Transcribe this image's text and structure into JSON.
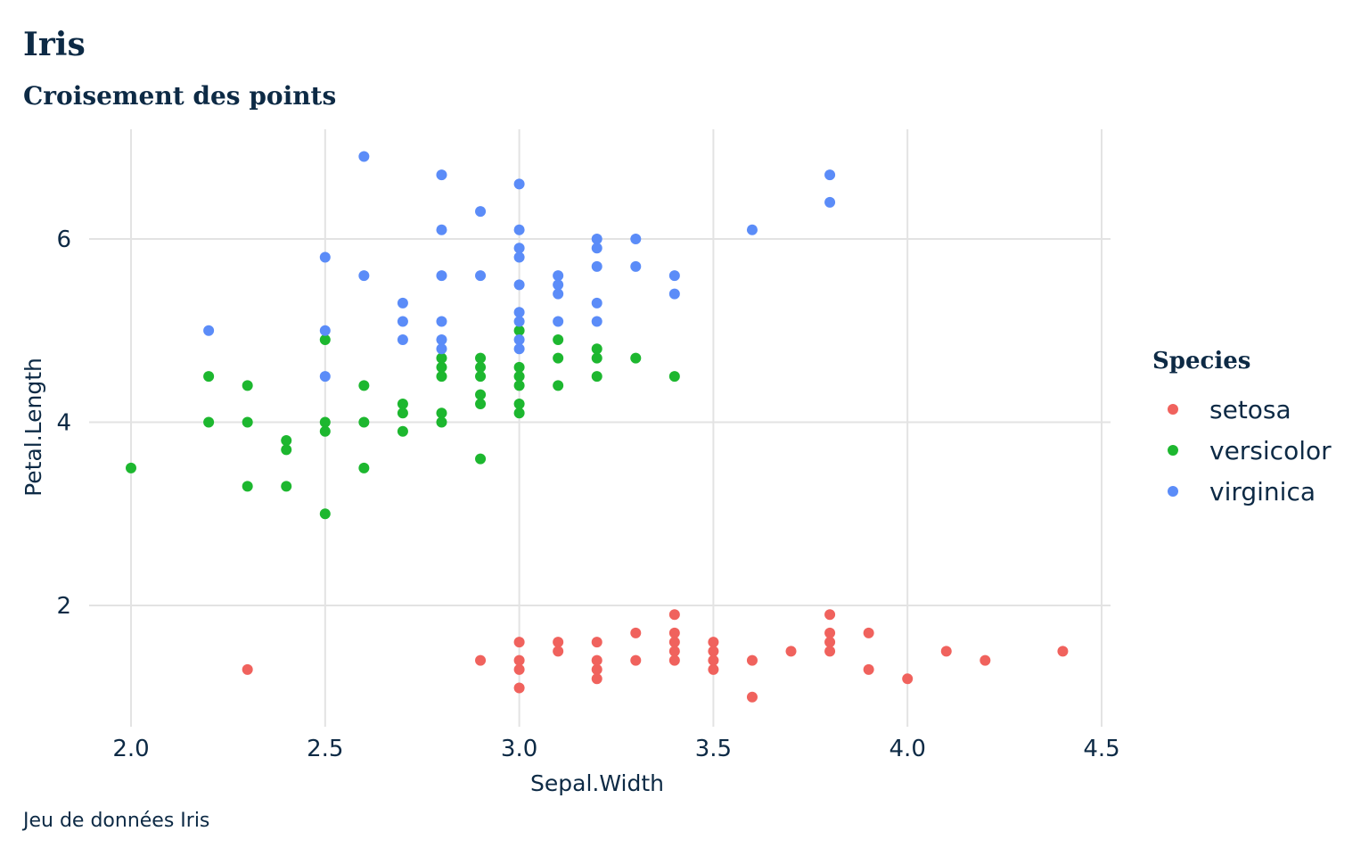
{
  "chart_data": {
    "type": "scatter",
    "title": "Iris",
    "subtitle": "Croisement des points",
    "xlabel": "Sepal.Width",
    "ylabel": "Petal.Length",
    "caption": "Jeu de données Iris",
    "xlim": [
      2.0,
      4.5
    ],
    "ylim": [
      1.0,
      6.9
    ],
    "x_ticks": [
      2.0,
      2.5,
      3.0,
      3.5,
      4.0,
      4.5
    ],
    "x_tick_labels": [
      "2.0",
      "2.5",
      "3.0",
      "3.5",
      "4.0",
      "4.5"
    ],
    "y_ticks": [
      2,
      4,
      6
    ],
    "y_tick_labels": [
      "2",
      "4",
      "6"
    ],
    "grid": true,
    "legend": {
      "title": "Species",
      "position": "right"
    },
    "series": [
      {
        "name": "setosa",
        "color": "#f0625d",
        "points": [
          [
            2.3,
            1.3
          ],
          [
            2.9,
            1.4
          ],
          [
            3.0,
            1.1
          ],
          [
            3.0,
            1.3
          ],
          [
            3.0,
            1.4
          ],
          [
            3.0,
            1.6
          ],
          [
            3.1,
            1.5
          ],
          [
            3.1,
            1.6
          ],
          [
            3.2,
            1.2
          ],
          [
            3.2,
            1.3
          ],
          [
            3.2,
            1.4
          ],
          [
            3.2,
            1.6
          ],
          [
            3.3,
            1.4
          ],
          [
            3.3,
            1.7
          ],
          [
            3.4,
            1.4
          ],
          [
            3.4,
            1.5
          ],
          [
            3.4,
            1.6
          ],
          [
            3.4,
            1.7
          ],
          [
            3.4,
            1.9
          ],
          [
            3.5,
            1.3
          ],
          [
            3.5,
            1.4
          ],
          [
            3.5,
            1.5
          ],
          [
            3.5,
            1.6
          ],
          [
            3.6,
            1.0
          ],
          [
            3.6,
            1.4
          ],
          [
            3.7,
            1.5
          ],
          [
            3.8,
            1.5
          ],
          [
            3.8,
            1.6
          ],
          [
            3.8,
            1.7
          ],
          [
            3.8,
            1.9
          ],
          [
            3.9,
            1.3
          ],
          [
            3.9,
            1.7
          ],
          [
            4.0,
            1.2
          ],
          [
            4.1,
            1.5
          ],
          [
            4.2,
            1.4
          ],
          [
            4.4,
            1.5
          ]
        ]
      },
      {
        "name": "versicolor",
        "color": "#1db72f",
        "points": [
          [
            2.0,
            3.5
          ],
          [
            2.2,
            4.0
          ],
          [
            2.2,
            4.5
          ],
          [
            2.3,
            3.3
          ],
          [
            2.3,
            4.0
          ],
          [
            2.3,
            4.4
          ],
          [
            2.4,
            3.3
          ],
          [
            2.4,
            3.7
          ],
          [
            2.4,
            3.8
          ],
          [
            2.5,
            3.0
          ],
          [
            2.5,
            3.9
          ],
          [
            2.5,
            4.0
          ],
          [
            2.5,
            4.9
          ],
          [
            2.6,
            3.5
          ],
          [
            2.6,
            4.0
          ],
          [
            2.6,
            4.4
          ],
          [
            2.7,
            3.9
          ],
          [
            2.7,
            4.1
          ],
          [
            2.7,
            4.2
          ],
          [
            2.8,
            4.0
          ],
          [
            2.8,
            4.1
          ],
          [
            2.8,
            4.5
          ],
          [
            2.8,
            4.6
          ],
          [
            2.8,
            4.7
          ],
          [
            2.9,
            3.6
          ],
          [
            2.9,
            4.2
          ],
          [
            2.9,
            4.3
          ],
          [
            2.9,
            4.5
          ],
          [
            2.9,
            4.6
          ],
          [
            2.9,
            4.7
          ],
          [
            3.0,
            4.1
          ],
          [
            3.0,
            4.2
          ],
          [
            3.0,
            4.4
          ],
          [
            3.0,
            4.5
          ],
          [
            3.0,
            4.6
          ],
          [
            3.0,
            5.0
          ],
          [
            3.1,
            4.4
          ],
          [
            3.1,
            4.7
          ],
          [
            3.1,
            4.9
          ],
          [
            3.2,
            4.5
          ],
          [
            3.2,
            4.7
          ],
          [
            3.2,
            4.8
          ],
          [
            3.3,
            4.7
          ],
          [
            3.4,
            4.5
          ]
        ]
      },
      {
        "name": "virginica",
        "color": "#5b8cf8",
        "points": [
          [
            2.2,
            5.0
          ],
          [
            2.5,
            4.5
          ],
          [
            2.5,
            5.0
          ],
          [
            2.5,
            5.8
          ],
          [
            2.6,
            5.6
          ],
          [
            2.6,
            6.9
          ],
          [
            2.7,
            4.9
          ],
          [
            2.7,
            5.1
          ],
          [
            2.7,
            5.3
          ],
          [
            2.8,
            4.8
          ],
          [
            2.8,
            4.9
          ],
          [
            2.8,
            5.1
          ],
          [
            2.8,
            5.6
          ],
          [
            2.8,
            6.1
          ],
          [
            2.8,
            6.7
          ],
          [
            2.9,
            5.6
          ],
          [
            2.9,
            6.3
          ],
          [
            3.0,
            4.8
          ],
          [
            3.0,
            4.9
          ],
          [
            3.0,
            5.1
          ],
          [
            3.0,
            5.2
          ],
          [
            3.0,
            5.5
          ],
          [
            3.0,
            5.8
          ],
          [
            3.0,
            5.9
          ],
          [
            3.0,
            6.1
          ],
          [
            3.0,
            6.6
          ],
          [
            3.1,
            5.1
          ],
          [
            3.1,
            5.4
          ],
          [
            3.1,
            5.5
          ],
          [
            3.1,
            5.6
          ],
          [
            3.2,
            5.1
          ],
          [
            3.2,
            5.3
          ],
          [
            3.2,
            5.7
          ],
          [
            3.2,
            5.9
          ],
          [
            3.2,
            6.0
          ],
          [
            3.3,
            5.7
          ],
          [
            3.3,
            6.0
          ],
          [
            3.4,
            5.4
          ],
          [
            3.4,
            5.6
          ],
          [
            3.6,
            6.1
          ],
          [
            3.8,
            6.4
          ],
          [
            3.8,
            6.7
          ]
        ]
      }
    ]
  }
}
